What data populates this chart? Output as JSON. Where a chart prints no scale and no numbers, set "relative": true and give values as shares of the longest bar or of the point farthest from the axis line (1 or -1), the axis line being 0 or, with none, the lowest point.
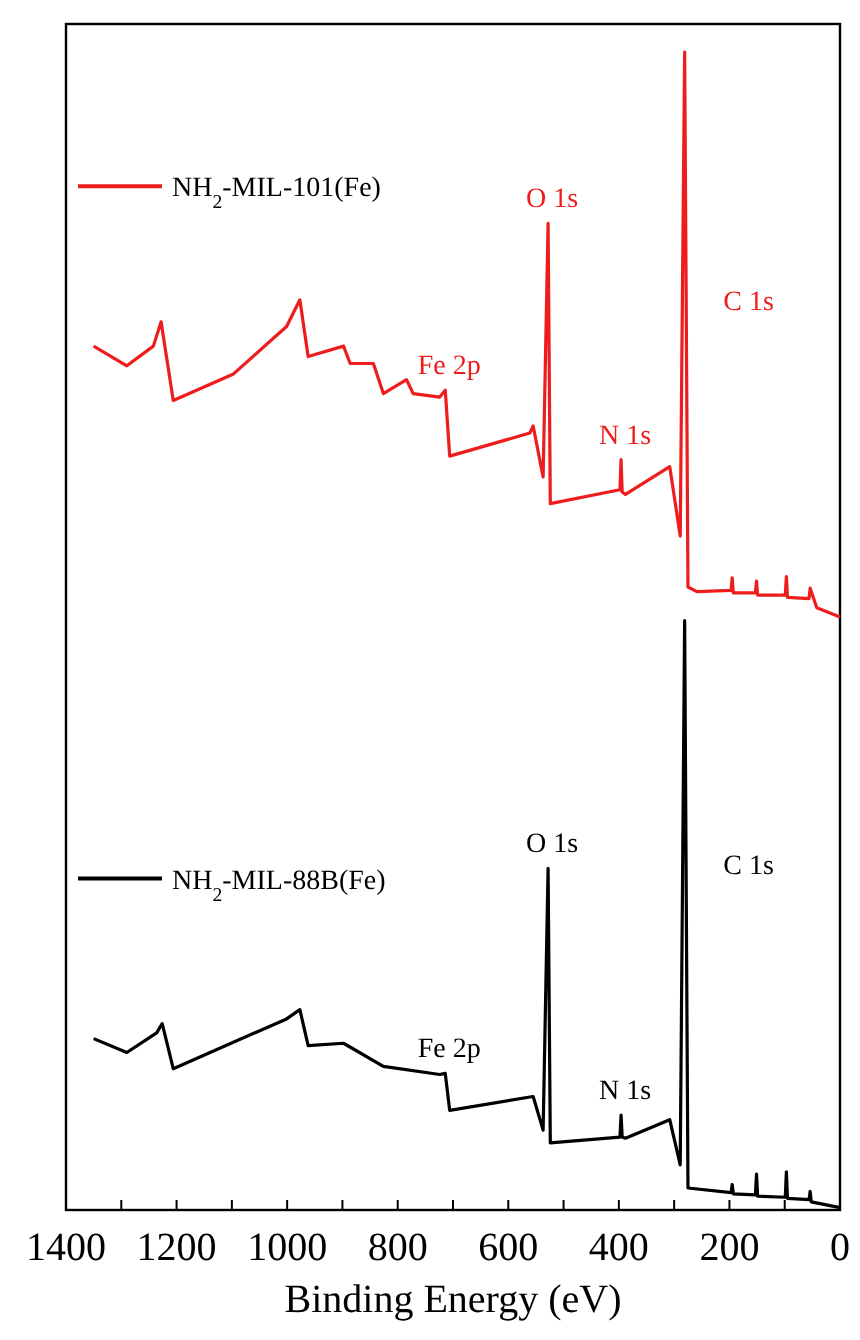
{
  "chart_data": {
    "type": "line",
    "relative": true,
    "xlabel": "Binding Energy (eV)",
    "xlim": [
      1400,
      0
    ],
    "xticks": [
      1400,
      {
        "value": 1300,
        "label": null
      },
      1200,
      {
        "value": 1100,
        "label": null
      },
      1000,
      {
        "value": 900,
        "label": null
      },
      800,
      {
        "value": 700,
        "label": null
      },
      600,
      {
        "value": 500,
        "label": null
      },
      400,
      {
        "value": 300,
        "label": null
      },
      200,
      {
        "value": 100,
        "label": null
      },
      0
    ],
    "legend": "left",
    "grid": false,
    "marker": "none",
    "line_style": "solid",
    "series": [
      {
        "name": "NH$_{2}$-MIL-101(Fe)",
        "color": "#ee1c1c",
        "x": [
          1350,
          1290,
          1242,
          1228,
          1206,
          1097,
          1001,
          977,
          962,
          898,
          886,
          844,
          826,
          784,
          772,
          724,
          714,
          706,
          561,
          555,
          537,
          528,
          524,
          398,
          396,
          394,
          388,
          308,
          289,
          281,
          275,
          259,
          197,
          195,
          193,
          153,
          151,
          149,
          99,
          97,
          95,
          56,
          54,
          42,
          0
        ],
        "values": [
          0.746,
          0.729,
          0.746,
          0.767,
          0.699,
          0.722,
          0.763,
          0.786,
          0.737,
          0.746,
          0.731,
          0.731,
          0.705,
          0.717,
          0.705,
          0.702,
          0.708,
          0.651,
          0.671,
          0.677,
          0.633,
          0.852,
          0.61,
          0.622,
          0.648,
          0.62,
          0.618,
          0.642,
          0.582,
          1.0,
          0.538,
          0.534,
          0.535,
          0.546,
          0.533,
          0.533,
          0.543,
          0.531,
          0.531,
          0.547,
          0.529,
          0.528,
          0.537,
          0.52,
          0.512
        ]
      },
      {
        "name": "NH$_{2}$-MIL-88B(Fe)",
        "color": "#000000",
        "x": [
          1350,
          1290,
          1236,
          1226,
          1206,
          1001,
          977,
          962,
          898,
          826,
          724,
          714,
          706,
          555,
          537,
          528,
          524,
          398,
          396,
          394,
          388,
          308,
          289,
          281,
          275,
          197,
          195,
          193,
          153,
          151,
          149,
          99,
          97,
          95,
          56,
          54,
          52,
          0
        ],
        "values": [
          0.148,
          0.136,
          0.153,
          0.161,
          0.122,
          0.165,
          0.173,
          0.142,
          0.144,
          0.124,
          0.117,
          0.118,
          0.086,
          0.098,
          0.069,
          0.295,
          0.058,
          0.063,
          0.082,
          0.063,
          0.062,
          0.078,
          0.039,
          0.509,
          0.019,
          0.015,
          0.022,
          0.014,
          0.013,
          0.031,
          0.012,
          0.011,
          0.033,
          0.01,
          0.009,
          0.016,
          0.007,
          0.002
        ]
      }
    ],
    "annotations": [
      {
        "text": "O 1s",
        "x": 528,
        "y": 0.852
      },
      {
        "text": "C 1s",
        "x": 281,
        "y": 0.786
      },
      {
        "text": "Fe 2p",
        "x": 714,
        "y": 0.708
      },
      {
        "text": "N 1s",
        "x": 396,
        "y": 0.648
      },
      {
        "text": "O 1s",
        "x": 528,
        "y": 0.295
      },
      {
        "text": "C 1s",
        "x": 281,
        "y": 0.299
      },
      {
        "text": "Fe 2p",
        "x": 714,
        "y": 0.118
      },
      {
        "text": "N 1s",
        "x": 396,
        "y": 0.082
      }
    ]
  }
}
